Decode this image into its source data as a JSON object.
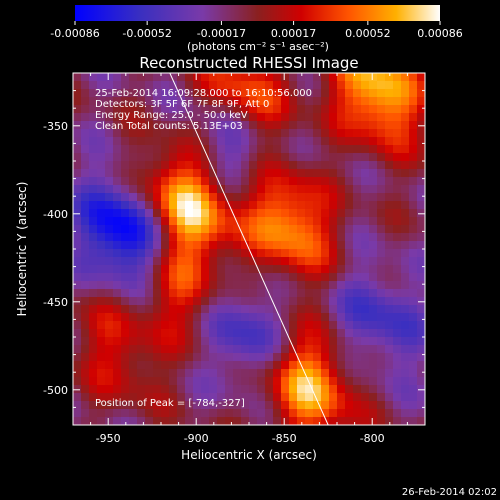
{
  "chart_data": {
    "type": "heatmap",
    "title": "Reconstructed RHESSI Image",
    "xlabel": "Heliocentric X (arcsec)",
    "ylabel": "Heliocentric Y (arcsec)",
    "xlim": [
      -970,
      -770
    ],
    "ylim": [
      -520,
      -320
    ],
    "xticks": [
      "-950",
      "-900",
      "-850",
      "-800"
    ],
    "yticks": [
      "-350",
      "-400",
      "-450",
      "-500"
    ],
    "colorbar": {
      "label": "(photons cm⁻² s⁻¹ asec⁻²)",
      "ticks": [
        "-0.00086",
        "-0.00052",
        "-0.00017",
        "0.00017",
        "0.00052",
        "0.00086"
      ],
      "range": [
        -0.00086,
        0.00086
      ]
    },
    "annotations": [
      "25-Feb-2014 16:09:28.000 to 16:10:56.000",
      "Detectors: 3F 5F 6F 7F 8F 9F, Att 0",
      "Energy Range: 25.0 - 50.0 keV",
      "Clean    Total counts: 5.13E+03"
    ],
    "peak_label": "Position of Peak = [-784,-327]",
    "peak": [
      -784,
      -327
    ],
    "limb_line": {
      "x": [
        -915,
        -825
      ],
      "y": [
        -320,
        -520
      ]
    },
    "sources": [
      {
        "x": -905,
        "y": -395,
        "amp": 0.00086
      },
      {
        "x": -912,
        "y": -440,
        "amp": 0.0005
      },
      {
        "x": -848,
        "y": -405,
        "amp": 0.00075
      },
      {
        "x": -838,
        "y": -497,
        "amp": 0.00082
      },
      {
        "x": -797,
        "y": -330,
        "amp": 0.00086
      },
      {
        "x": -873,
        "y": -333,
        "amp": 0.0006
      },
      {
        "x": -945,
        "y": -478,
        "amp": 0.00035
      },
      {
        "x": -940,
        "y": -412,
        "amp": -0.00086
      },
      {
        "x": -870,
        "y": -470,
        "amp": -0.0005
      },
      {
        "x": -878,
        "y": -360,
        "amp": -0.00045
      },
      {
        "x": -795,
        "y": -460,
        "amp": -0.0004
      }
    ]
  },
  "timestamp": "26-Feb-2014 02:02"
}
